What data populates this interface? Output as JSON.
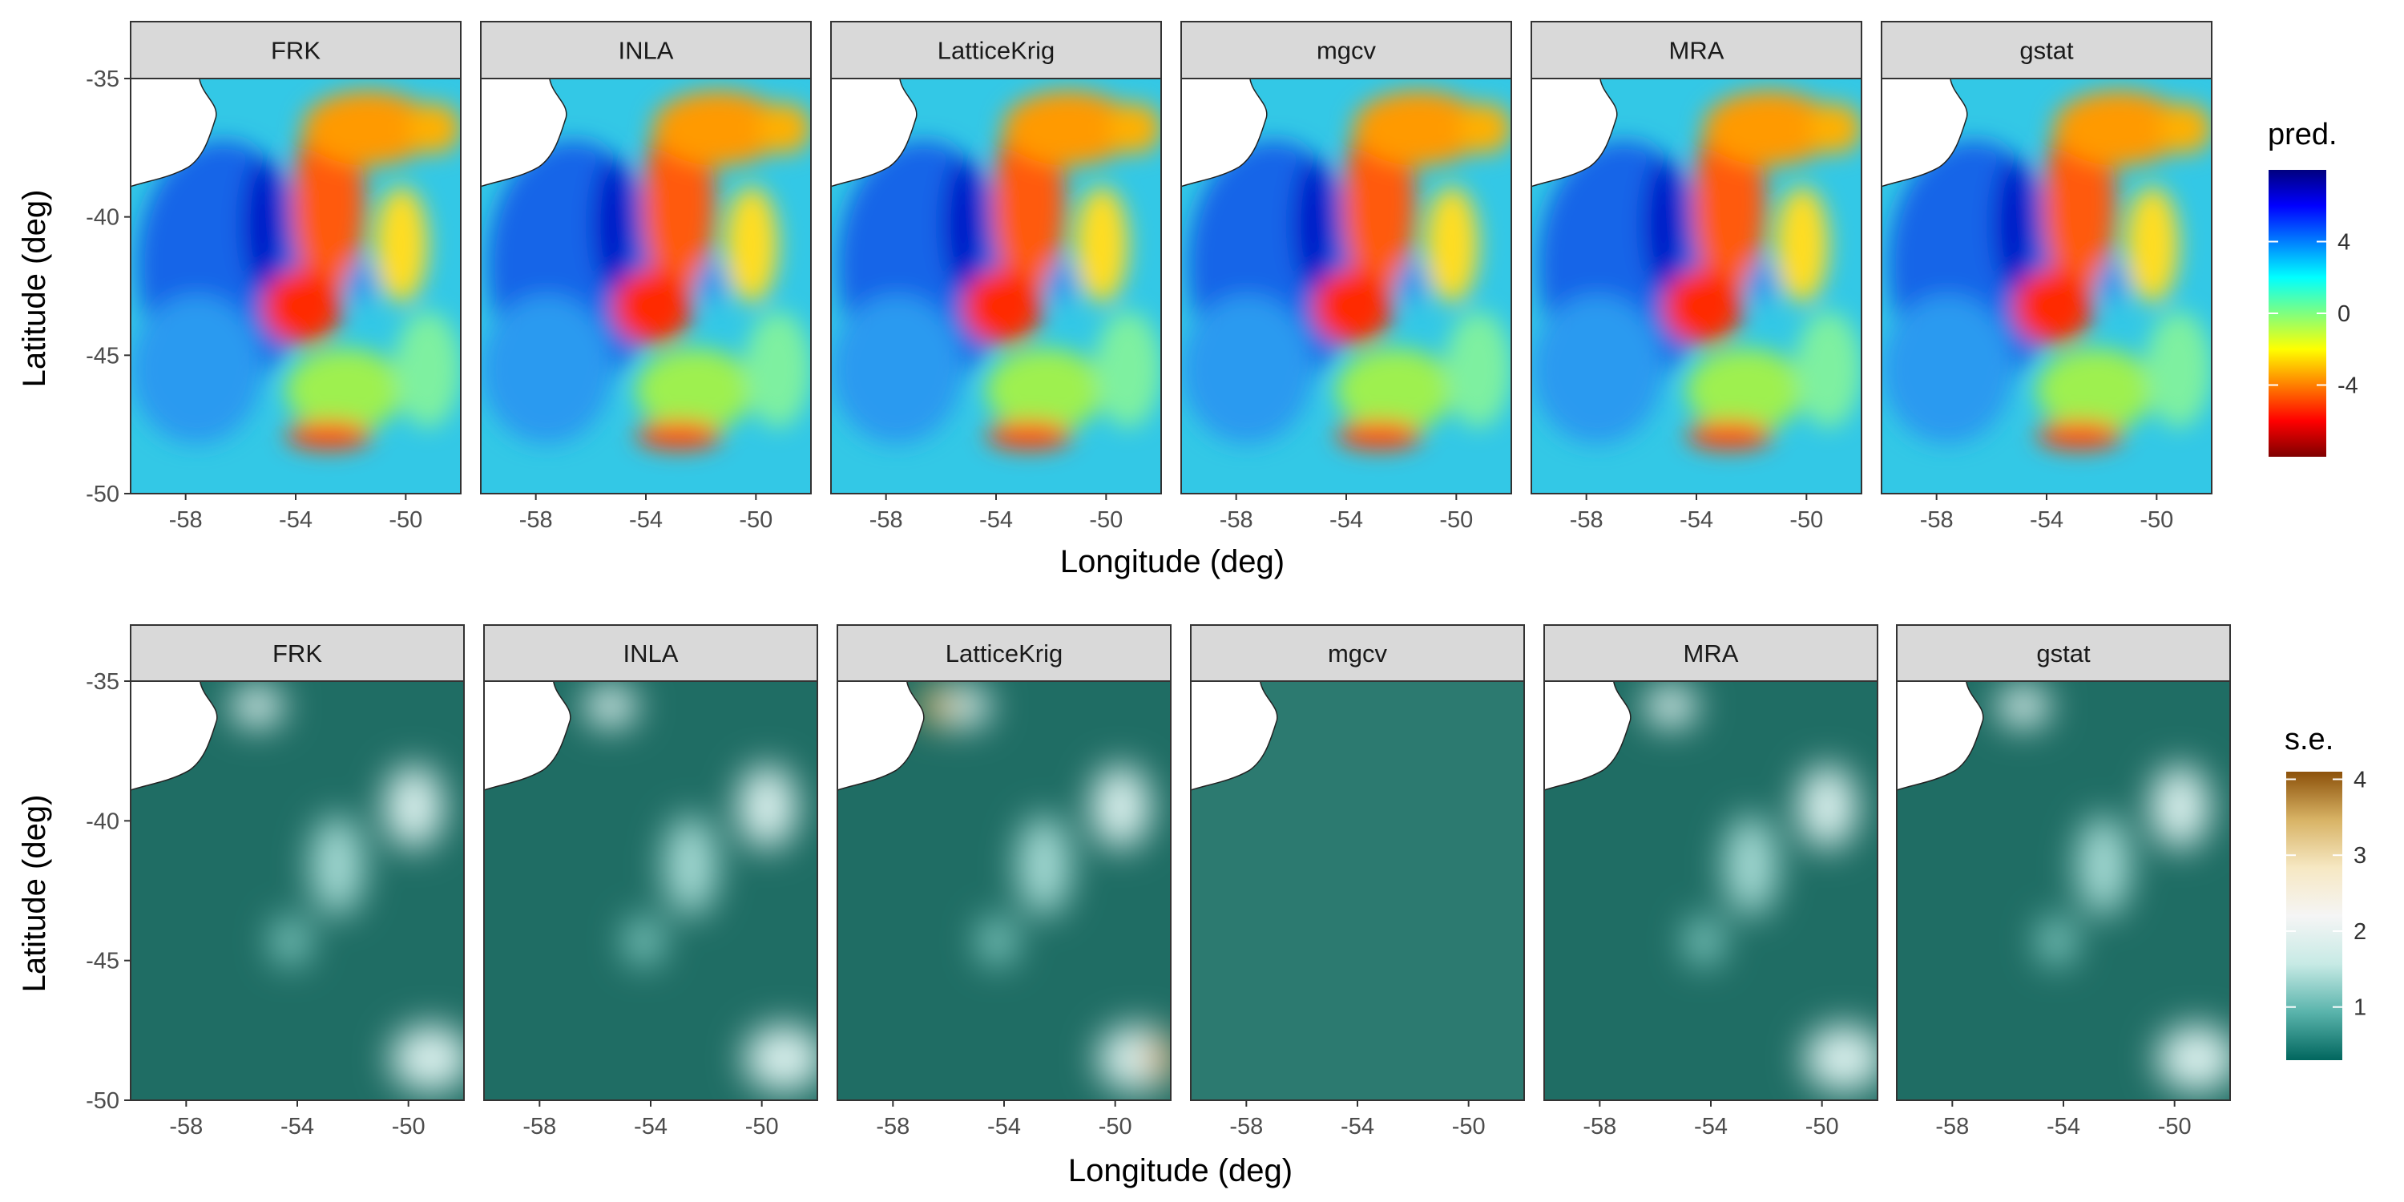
{
  "chart_data": [
    {
      "type": "heatmap",
      "panels": [
        "FRK",
        "INLA",
        "LatticeKrig",
        "mgcv",
        "MRA",
        "gstat"
      ],
      "xlabel": "Longitude (deg)",
      "ylabel": "Latitude (deg)",
      "xticks": [
        -58,
        -54,
        -50
      ],
      "yticks": [
        -35,
        -40,
        -45,
        -50
      ],
      "xlim": [
        -60,
        -48
      ],
      "ylim": [
        -50,
        -35
      ],
      "legend": {
        "title": "pred.",
        "ticks": [
          4,
          0,
          -4
        ],
        "range": [
          -8,
          8
        ],
        "placement": "right"
      },
      "colors": [
        "#00007f",
        "#0000ff",
        "#007fff",
        "#00ffff",
        "#7fff7f",
        "#ffff00",
        "#ff7f00",
        "#ff0000",
        "#7f0000"
      ],
      "grid": false
    },
    {
      "type": "heatmap",
      "panels": [
        "FRK",
        "INLA",
        "LatticeKrig",
        "mgcv",
        "MRA",
        "gstat"
      ],
      "xlabel": "Longitude (deg)",
      "ylabel": "Latitude (deg)",
      "xticks": [
        -58,
        -54,
        -50
      ],
      "yticks": [
        -35,
        -40,
        -45,
        -50
      ],
      "xlim": [
        -60,
        -48
      ],
      "ylim": [
        -50,
        -35
      ],
      "legend": {
        "title": "s.e.",
        "ticks": [
          4,
          3,
          2,
          1
        ],
        "range": [
          0.3,
          4.1
        ],
        "placement": "right"
      },
      "colors": [
        "#8c510a",
        "#d8b365",
        "#f6e8c3",
        "#f5f5f5",
        "#c7eae5",
        "#5ab4ac",
        "#01665e"
      ],
      "grid": false
    }
  ]
}
